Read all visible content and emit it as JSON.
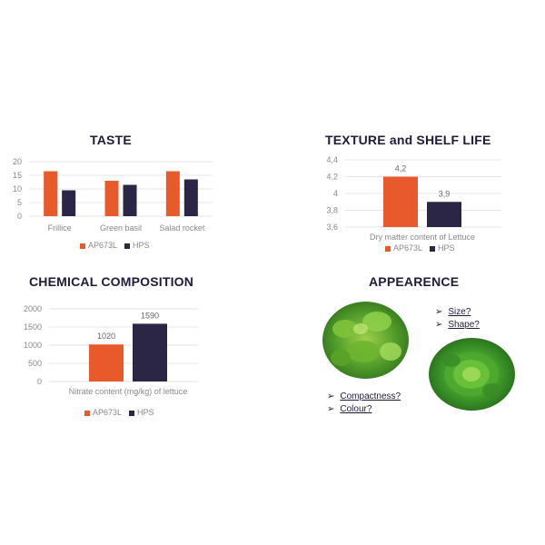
{
  "colors": {
    "ap": "#e85a2c",
    "hps": "#2b2646",
    "grid": "#e6e6e6"
  },
  "taste": {
    "title": "TASTE",
    "legend": [
      "AP673L",
      "HPS"
    ],
    "chart_data": {
      "type": "bar",
      "categories": [
        "Frillice",
        "Green basil",
        "Salad rocket"
      ],
      "series": [
        {
          "name": "AP673L",
          "values": [
            16.5,
            13,
            16.5
          ]
        },
        {
          "name": "HPS",
          "values": [
            9.5,
            11.5,
            13.5
          ]
        }
      ],
      "ylim": [
        0,
        20
      ],
      "yticks": [
        "0",
        "5",
        "10",
        "15",
        "20"
      ]
    }
  },
  "texture": {
    "title": "TEXTURE and SHELF LIFE",
    "legend": [
      "AP673L",
      "HPS"
    ],
    "chart_data": {
      "type": "bar",
      "categories": [
        "Dry matter content of Lettuce"
      ],
      "series": [
        {
          "name": "AP673L",
          "values": [
            4.2
          ]
        },
        {
          "name": "HPS",
          "values": [
            3.9
          ]
        }
      ],
      "data_labels": [
        "4,2",
        "3,9"
      ],
      "xlabel": "Dry matter content of Lettuce",
      "ylim": [
        3.6,
        4.4
      ],
      "yticks": [
        "3,6",
        "3,8",
        "4",
        "4,2",
        "4,4"
      ]
    }
  },
  "chemical": {
    "title": "CHEMICAL COMPOSITION",
    "legend": [
      "AP673L",
      "HPS"
    ],
    "chart_data": {
      "type": "bar",
      "categories": [
        "Nitrate content (mg/kg) of lettuce"
      ],
      "series": [
        {
          "name": "AP673L",
          "values": [
            1020
          ]
        },
        {
          "name": "HPS",
          "values": [
            1590
          ]
        }
      ],
      "data_labels": [
        "1020",
        "1590"
      ],
      "xlabel": "Nitrate content (mg/kg) of lettuce",
      "ylim": [
        0,
        2000
      ],
      "yticks": [
        "0",
        "500",
        "1000",
        "1500",
        "2000"
      ]
    }
  },
  "appearance": {
    "title": "APPEARENCE",
    "bullets_top": [
      "Size?",
      "Shape?"
    ],
    "bullets_bottom": [
      "Compactness?",
      "Colour?"
    ],
    "arrow_glyph": "➢"
  }
}
